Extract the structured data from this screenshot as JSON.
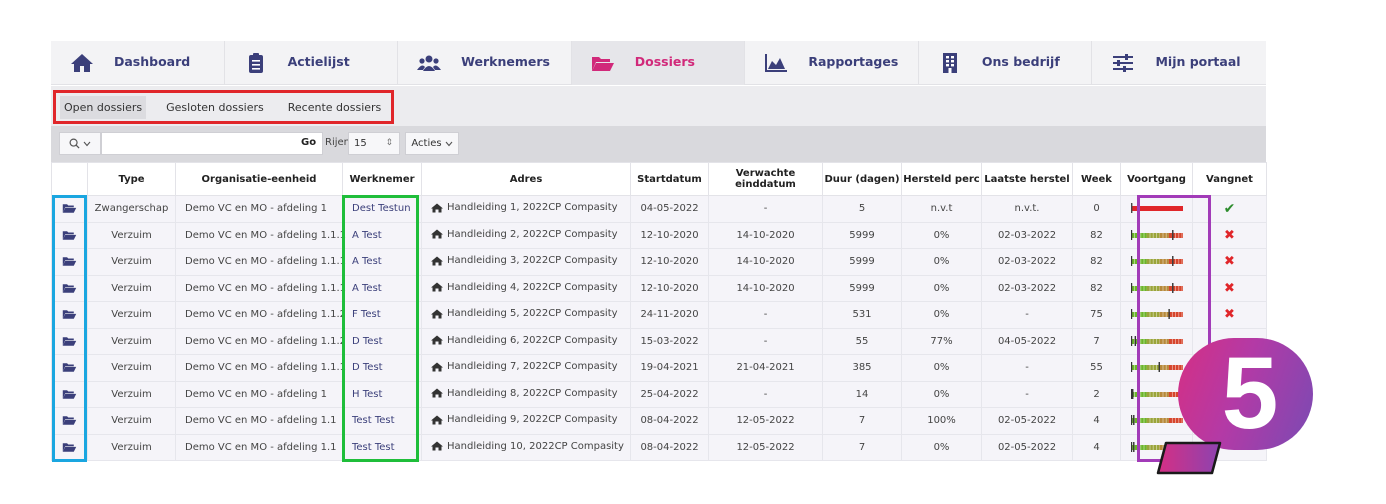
{
  "nav": {
    "tabs": [
      {
        "label": "Dashboard",
        "icon": "home-icon"
      },
      {
        "label": "Actielijst",
        "icon": "clipboard-icon"
      },
      {
        "label": "Werknemers",
        "icon": "users-icon"
      },
      {
        "label": "Dossiers",
        "icon": "folder-open-icon",
        "active": true
      },
      {
        "label": "Rapportages",
        "icon": "area-chart-icon"
      },
      {
        "label": "Ons bedrijf",
        "icon": "building-icon"
      },
      {
        "label": "Mijn portaal",
        "icon": "sliders-icon"
      }
    ]
  },
  "subtabs": [
    {
      "label": "Open dossiers",
      "active": true
    },
    {
      "label": "Gesloten dossiers"
    },
    {
      "label": "Recente dossiers"
    }
  ],
  "toolbar": {
    "search_value": "",
    "go_label": "Go",
    "rows_label": "Rijen",
    "rows_value": "15",
    "actions_label": "Acties"
  },
  "table": {
    "headers": [
      "",
      "Type",
      "Organisatie-eenheid",
      "Werknemer",
      "Adres",
      "Startdatum",
      "Verwachte einddatum",
      "Duur (dagen)",
      "Hersteld perc",
      "Laatste herstel",
      "Week",
      "Voortgang",
      "Vangnet"
    ],
    "rows": [
      {
        "type": "Zwangerschap",
        "org": "Demo VC en MO - afdeling 1",
        "werknemer": "Dest Testun",
        "adres": "Handleiding 1, 2022CP Compasity",
        "start": "04-05-2022",
        "eind": "-",
        "duur": "5",
        "hersteld": "n.v.t",
        "laatste": "n.v.t.",
        "week": "0",
        "voortgang": 0.02,
        "vangnet": "ok"
      },
      {
        "type": "Verzuim",
        "org": "Demo VC en MO - afdeling 1.1.1",
        "werknemer": "A Test",
        "adres": "Handleiding 2, 2022CP Compasity",
        "start": "12-10-2020",
        "eind": "14-10-2020",
        "duur": "5999",
        "hersteld": "0%",
        "laatste": "02-03-2022",
        "week": "82",
        "voortgang": 0.79,
        "vangnet": "no"
      },
      {
        "type": "Verzuim",
        "org": "Demo VC en MO - afdeling 1.1.1",
        "werknemer": "A Test",
        "adres": "Handleiding 3, 2022CP Compasity",
        "start": "12-10-2020",
        "eind": "14-10-2020",
        "duur": "5999",
        "hersteld": "0%",
        "laatste": "02-03-2022",
        "week": "82",
        "voortgang": 0.79,
        "vangnet": "no"
      },
      {
        "type": "Verzuim",
        "org": "Demo VC en MO - afdeling 1.1.1",
        "werknemer": "A Test",
        "adres": "Handleiding 4, 2022CP Compasity",
        "start": "12-10-2020",
        "eind": "14-10-2020",
        "duur": "5999",
        "hersteld": "0%",
        "laatste": "02-03-2022",
        "week": "82",
        "voortgang": 0.79,
        "vangnet": "no"
      },
      {
        "type": "Verzuim",
        "org": "Demo VC en MO - afdeling 1.1.2",
        "werknemer": "F Test",
        "adres": "Handleiding 5, 2022CP Compasity",
        "start": "24-11-2020",
        "eind": "-",
        "duur": "531",
        "hersteld": "0%",
        "laatste": "-",
        "week": "75",
        "voortgang": 0.72,
        "vangnet": "no"
      },
      {
        "type": "Verzuim",
        "org": "Demo VC en MO - afdeling 1.1.2",
        "werknemer": "D Test",
        "adres": "Handleiding 6, 2022CP Compasity",
        "start": "15-03-2022",
        "eind": "-",
        "duur": "55",
        "hersteld": "77%",
        "laatste": "04-05-2022",
        "week": "7",
        "voortgang": 0.07,
        "vangnet": ""
      },
      {
        "type": "Verzuim",
        "org": "Demo VC en MO - afdeling 1.1.1",
        "werknemer": "D Test",
        "adres": "Handleiding 7, 2022CP Compasity",
        "start": "19-04-2021",
        "eind": "21-04-2021",
        "duur": "385",
        "hersteld": "0%",
        "laatste": "-",
        "week": "55",
        "voortgang": 0.53,
        "vangnet": ""
      },
      {
        "type": "Verzuim",
        "org": "Demo VC en MO - afdeling 1",
        "werknemer": "H Test",
        "adres": "Handleiding 8, 2022CP Compasity",
        "start": "25-04-2022",
        "eind": "-",
        "duur": "14",
        "hersteld": "0%",
        "laatste": "-",
        "week": "2",
        "voortgang": 0.02,
        "vangnet": ""
      },
      {
        "type": "Verzuim",
        "org": "Demo VC en MO - afdeling 1.1",
        "werknemer": "Test Test",
        "adres": "Handleiding 9, 2022CP Compasity",
        "start": "08-04-2022",
        "eind": "12-05-2022",
        "duur": "7",
        "hersteld": "100%",
        "laatste": "02-05-2022",
        "week": "4",
        "voortgang": 0.04,
        "vangnet": ""
      },
      {
        "type": "Verzuim",
        "org": "Demo VC en MO - afdeling 1.1",
        "werknemer": "Test Test",
        "adres": "Handleiding 10, 2022CP Compasity",
        "start": "08-04-2022",
        "eind": "12-05-2022",
        "duur": "7",
        "hersteld": "0%",
        "laatste": "02-05-2022",
        "week": "4",
        "voortgang": 0.04,
        "vangnet": ""
      }
    ]
  },
  "badge": {
    "number": "5"
  },
  "colors": {
    "accent": "#d1297a",
    "nav_text": "#3b3f7a",
    "highlight_red": "#e0262a",
    "highlight_blue": "#1aa6e0",
    "highlight_green": "#1fbe3a",
    "highlight_purple": "#a23bb8"
  }
}
